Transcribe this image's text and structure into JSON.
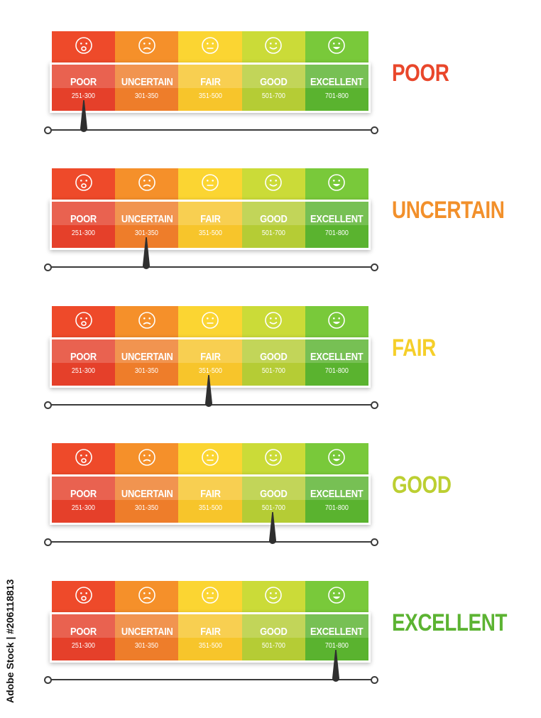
{
  "segments": [
    {
      "name": "POOR",
      "range": "251-300",
      "top": "#ee4a2a",
      "bot": "#e5402a",
      "face": "worried-face-icon"
    },
    {
      "name": "UNCERTAIN",
      "range": "301-350",
      "top": "#f5902a",
      "bot": "#ee7d2a",
      "face": "frown-face-icon"
    },
    {
      "name": "FAIR",
      "range": "351-500",
      "top": "#fbd532",
      "bot": "#f7c52b",
      "face": "neutral-face-icon"
    },
    {
      "name": "GOOD",
      "range": "501-700",
      "top": "#cbdb38",
      "bot": "#b5cc35",
      "face": "smile-face-icon"
    },
    {
      "name": "EXCELLENT",
      "range": "701-800",
      "top": "#79c93a",
      "bot": "#5ab32f",
      "face": "grin-face-icon"
    }
  ],
  "meters": [
    {
      "status": "POOR",
      "color": "#e9472b",
      "needle_segment": 0
    },
    {
      "status": "UNCERTAIN",
      "color": "#f2902b",
      "needle_segment": 1
    },
    {
      "status": "FAIR",
      "color": "#f5cf2a",
      "needle_segment": 2
    },
    {
      "status": "GOOD",
      "color": "#bccf32",
      "needle_segment": 3
    },
    {
      "status": "EXCELLENT",
      "color": "#5cb332",
      "needle_segment": 4
    }
  ],
  "credit": "Adobe Stock | #206118813"
}
